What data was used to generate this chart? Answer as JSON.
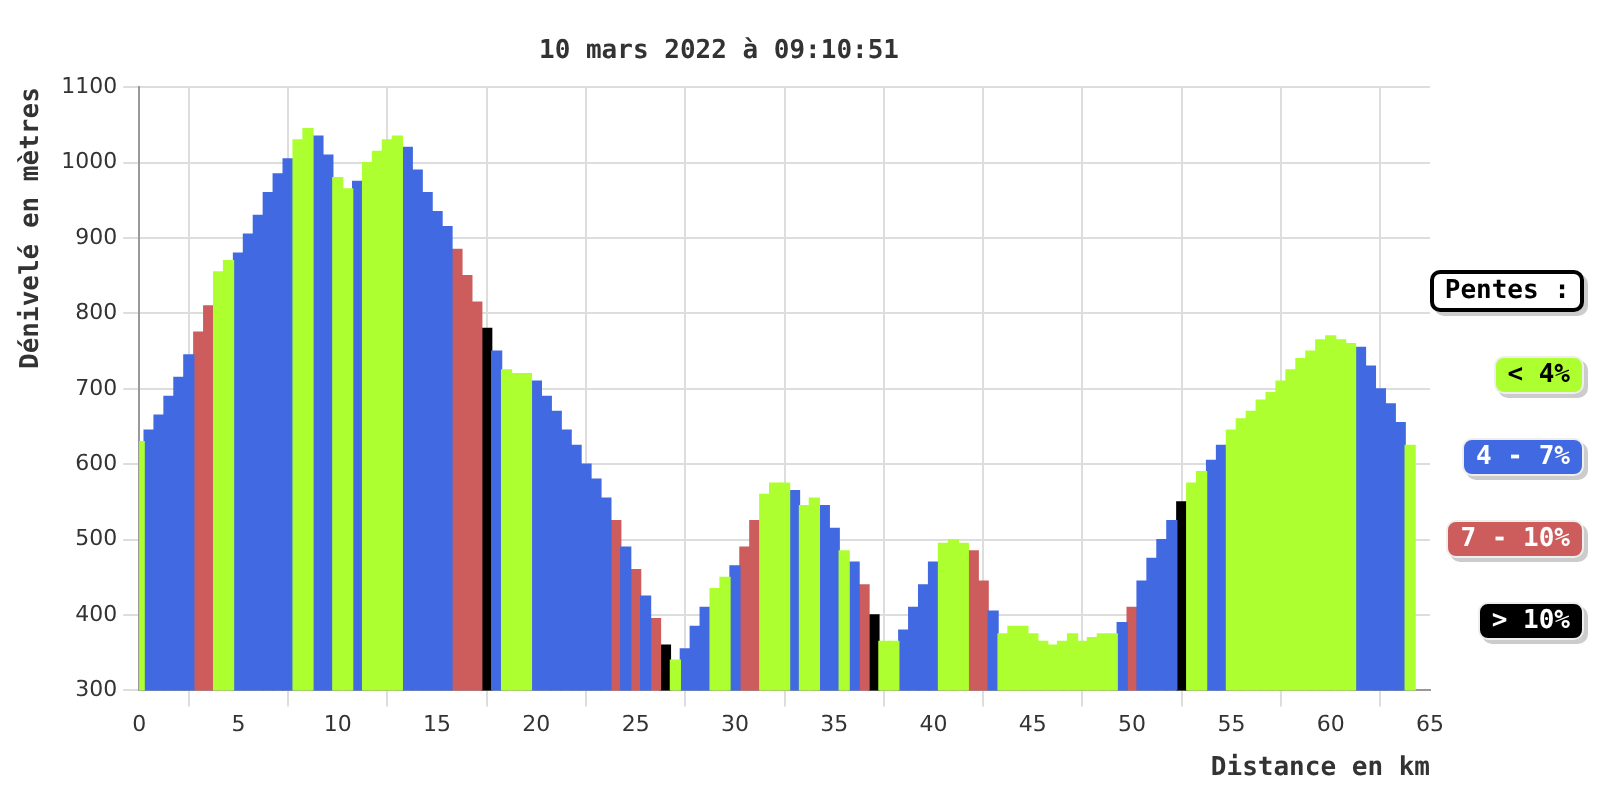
{
  "chart_data": {
    "type": "bar",
    "title": "10 mars 2022 à 09:10:51",
    "xlabel": "Distance en km",
    "ylabel": "Dénivelé en mètres",
    "legend_title": "Pentes :",
    "legend": "right",
    "xlim": [
      0,
      65
    ],
    "xticks": [
      0,
      5,
      10,
      15,
      20,
      25,
      30,
      35,
      40,
      45,
      50,
      55,
      60,
      65
    ],
    "ylim": [
      300,
      1100
    ],
    "yticks": [
      300,
      400,
      500,
      600,
      700,
      800,
      900,
      1000,
      1100
    ],
    "grid": true,
    "series": [
      {
        "name": "< 4%",
        "color": "#adff2f",
        "x": [
          0,
          4,
          4.5,
          8,
          8.5,
          10,
          10.5,
          11.5,
          12,
          12.5,
          13,
          18.5,
          19,
          19.5,
          27,
          29,
          29.5,
          31.5,
          32,
          32.5,
          33.5,
          34,
          35.5,
          37.5,
          38,
          40.5,
          41,
          41.5,
          43.5,
          44,
          44.5,
          45,
          45.5,
          46,
          46.5,
          47,
          47.5,
          48,
          48.5,
          49,
          53,
          53.5,
          55,
          55.5,
          56,
          56.5,
          57,
          57.5,
          58,
          58.5,
          59,
          59.5,
          60,
          60.5,
          61,
          64
        ],
        "values": [
          630,
          855,
          870,
          1030,
          1045,
          980,
          965,
          1000,
          1015,
          1030,
          1035,
          725,
          720,
          720,
          340,
          435,
          450,
          560,
          575,
          575,
          545,
          555,
          485,
          365,
          365,
          495,
          500,
          495,
          375,
          385,
          385,
          375,
          365,
          360,
          365,
          375,
          365,
          370,
          375,
          375,
          575,
          590,
          645,
          660,
          670,
          685,
          695,
          710,
          725,
          740,
          750,
          765,
          770,
          765,
          760,
          625
        ]
      },
      {
        "name": "4 - 7%",
        "color": "#4169e1",
        "x": [
          0.5,
          1,
          1.5,
          2,
          2.5,
          5,
          5.5,
          6,
          6.5,
          7,
          7.5,
          9,
          9.5,
          11,
          13.5,
          14,
          14.5,
          15,
          15.5,
          18,
          20,
          20.5,
          21,
          21.5,
          22,
          22.5,
          23,
          23.5,
          24.5,
          25.5,
          27.5,
          28,
          28.5,
          30,
          33,
          34.5,
          35,
          36,
          38.5,
          39,
          39.5,
          40,
          43,
          49.5,
          50.5,
          51,
          51.5,
          52,
          54,
          54.5,
          61.5,
          62,
          62.5,
          63,
          63.5
        ],
        "values": [
          645,
          665,
          690,
          715,
          745,
          880,
          905,
          930,
          960,
          985,
          1005,
          1035,
          1010,
          975,
          1020,
          990,
          960,
          935,
          915,
          750,
          710,
          690,
          670,
          645,
          625,
          600,
          580,
          555,
          490,
          425,
          355,
          385,
          410,
          465,
          565,
          545,
          515,
          470,
          380,
          410,
          440,
          470,
          405,
          390,
          445,
          475,
          500,
          525,
          605,
          625,
          755,
          730,
          700,
          680,
          655
        ]
      },
      {
        "name": "7 - 10%",
        "color": "#cd5c5c",
        "x": [
          3,
          3.5,
          16,
          16.5,
          17,
          24,
          25,
          26,
          30.5,
          31,
          36.5,
          42,
          42.5,
          50
        ],
        "values": [
          775,
          810,
          885,
          850,
          815,
          525,
          460,
          395,
          490,
          525,
          440,
          485,
          445,
          410
        ]
      },
      {
        "name": "> 10%",
        "color": "#000000",
        "x": [
          17.5,
          26.5,
          37,
          52.5
        ],
        "values": [
          780,
          360,
          400,
          550
        ]
      }
    ]
  }
}
